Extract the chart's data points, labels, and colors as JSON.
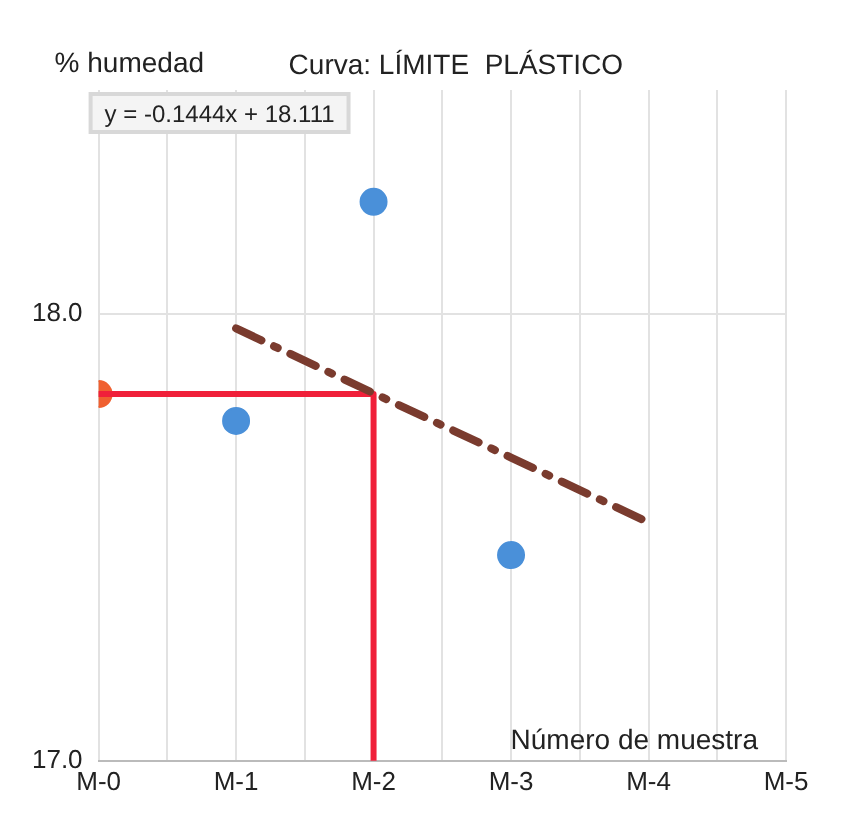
{
  "chart_data": {
    "type": "scatter",
    "title": "Curva: LÍMITE  PLÁSTICO",
    "ylabel": "% humedad",
    "xlabel": "Número de muestra",
    "annotations": [
      "y = -0.1444x + 18.111"
    ],
    "categories": [
      "M-0",
      "M-1",
      "M-2",
      "M-3",
      "M-4",
      "M-5"
    ],
    "ylim": [
      17,
      18.5
    ],
    "yticks": [
      {
        "value": 17,
        "label": "17.0"
      },
      {
        "value": 18,
        "label": "18.0"
      }
    ],
    "grid": true,
    "series": [
      {
        "values": [
          null,
          17.76,
          18.25,
          17.46,
          null,
          null
        ],
        "color": "#4a90d9",
        "marker": "circle"
      },
      {
        "type": "line",
        "values": [
          null,
          17.967,
          17.822,
          17.678,
          17.533,
          null
        ],
        "color": "#7a3b2e",
        "line_style": "dashed",
        "marker": "none"
      },
      {
        "type": "line",
        "x": [
          "M-0",
          "M-2",
          "M-2"
        ],
        "values": [
          17.82,
          17.82,
          17
        ],
        "color": "#f0203a",
        "line_style": "solid",
        "marker": "none"
      },
      {
        "values": [
          17.82,
          null,
          null,
          null,
          null,
          null
        ],
        "color": "#f06030",
        "marker": "circle"
      }
    ]
  }
}
